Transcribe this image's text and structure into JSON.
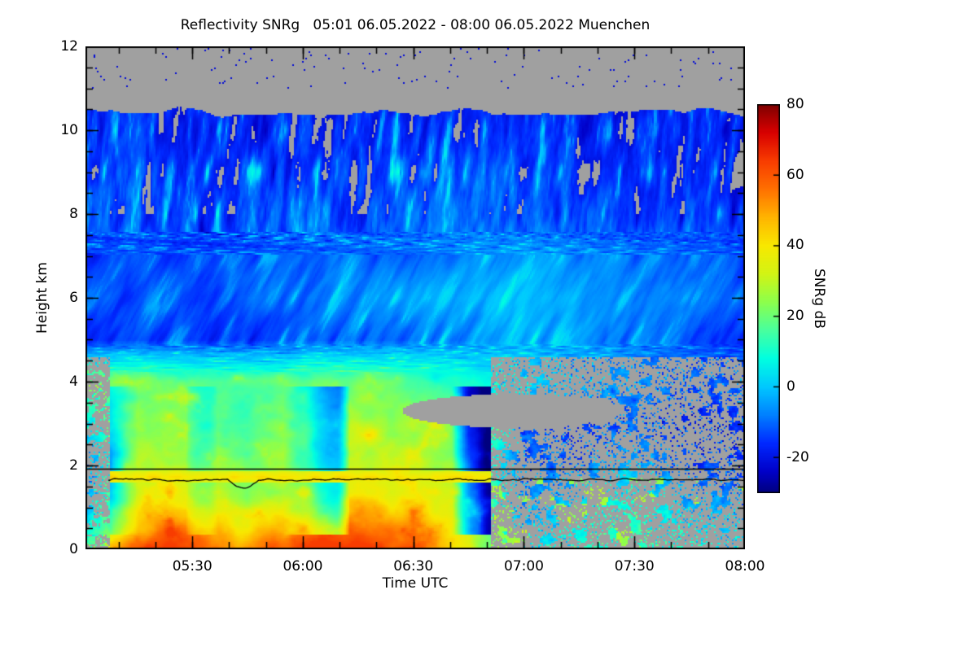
{
  "chart_data": {
    "type": "heatmap",
    "title": "Reflectivity SNRg   05:01 06.05.2022 - 08:00 06.05.2022 Muenchen",
    "xlabel": "Time UTC",
    "ylabel": "Height km",
    "x_range_hours": [
      5.0167,
      8.0
    ],
    "x_major_ticks": [
      {
        "hour": 5.5,
        "label": "05:30"
      },
      {
        "hour": 6.0,
        "label": "06:00"
      },
      {
        "hour": 6.5,
        "label": "06:30"
      },
      {
        "hour": 7.0,
        "label": "07:00"
      },
      {
        "hour": 7.5,
        "label": "07:30"
      },
      {
        "hour": 8.0,
        "label": "08:00"
      }
    ],
    "x_minor_tick_minutes": 10,
    "y_range_km": [
      0,
      12
    ],
    "y_major_ticks": [
      0,
      2,
      4,
      6,
      8,
      10,
      12
    ],
    "y_minor_tick_km": 0.5,
    "colorbar": {
      "label": "SNRg dB",
      "range_db": [
        -30,
        80
      ],
      "tick_values_db": [
        80,
        60,
        40,
        20,
        0,
        -20
      ],
      "no_data_color": "#a0a0a0",
      "stops": [
        {
          "v": -30,
          "color": "#00007f"
        },
        {
          "v": -24,
          "color": "#0000c8"
        },
        {
          "v": -16,
          "color": "#0028ff"
        },
        {
          "v": -8,
          "color": "#0080ff"
        },
        {
          "v": 0,
          "color": "#00c8ff"
        },
        {
          "v": 8,
          "color": "#00ffe0"
        },
        {
          "v": 16,
          "color": "#48ff9e"
        },
        {
          "v": 24,
          "color": "#8cff4c"
        },
        {
          "v": 32,
          "color": "#d2f414"
        },
        {
          "v": 40,
          "color": "#f8e800"
        },
        {
          "v": 48,
          "color": "#ffb400"
        },
        {
          "v": 56,
          "color": "#ff7000"
        },
        {
          "v": 64,
          "color": "#f83c00"
        },
        {
          "v": 72,
          "color": "#d80000"
        },
        {
          "v": 80,
          "color": "#7f0000"
        }
      ]
    },
    "overlay_lines": {
      "flat_line_km": 1.93,
      "melting_layer_line_km": 1.66,
      "melting_line_start_hour": 5.12
    },
    "field_params": {
      "cloud_top_km": 10.45,
      "speckle_top_km": 11.0,
      "rain_end_hour": 6.85,
      "left_edge_hour": 5.13,
      "gray_blob": [
        6.95,
        3.3,
        0.5,
        0.4
      ]
    },
    "coarse_grid": {
      "times_hours": [
        5.0,
        5.25,
        5.5,
        5.75,
        6.0,
        6.25,
        6.5,
        6.75,
        7.0,
        7.25,
        7.5,
        7.75,
        8.0
      ],
      "heights_km": [
        0,
        1,
        2,
        3,
        4,
        5,
        6,
        7,
        8,
        9,
        10,
        11,
        12
      ],
      "snr_db": [
        [
          12,
          45,
          48,
          40,
          50,
          52,
          45,
          35,
          5,
          10,
          15,
          8,
          5
        ],
        [
          -5,
          35,
          38,
          25,
          40,
          45,
          40,
          30,
          -5,
          5,
          12,
          0,
          -5
        ],
        [
          -10,
          30,
          28,
          20,
          30,
          32,
          30,
          25,
          -10,
          -8,
          0,
          -12,
          -15
        ],
        [
          5,
          25,
          22,
          15,
          28,
          30,
          28,
          15,
          null,
          -15,
          -10,
          -18,
          null
        ],
        [
          20,
          22,
          20,
          18,
          22,
          22,
          18,
          10,
          2,
          -2,
          -5,
          -8,
          -10
        ],
        [
          -14,
          -12,
          -14,
          -15,
          -12,
          -10,
          -8,
          -5,
          -2,
          -5,
          -8,
          -12,
          -14
        ],
        [
          -12,
          -10,
          -12,
          -10,
          -8,
          -6,
          -4,
          -2,
          0,
          -2,
          -6,
          -8,
          -10
        ],
        [
          -14,
          -12,
          -14,
          -12,
          -10,
          -8,
          -8,
          -6,
          -4,
          -6,
          -8,
          -10,
          -12
        ],
        [
          -12,
          -10,
          -14,
          -12,
          -10,
          -12,
          -10,
          -8,
          -10,
          -12,
          -14,
          -12,
          -14
        ],
        [
          -14,
          -12,
          -15,
          -13,
          -12,
          -14,
          -12,
          -10,
          -12,
          -14,
          -15,
          -14,
          -15
        ],
        [
          -16,
          -15,
          -17,
          -16,
          -15,
          -16,
          -15,
          -14,
          -15,
          -16,
          -17,
          -16,
          -17
        ],
        [
          null,
          null,
          null,
          null,
          null,
          null,
          null,
          null,
          null,
          null,
          null,
          null,
          null
        ],
        [
          null,
          null,
          null,
          null,
          null,
          null,
          null,
          null,
          null,
          null,
          null,
          null,
          null
        ]
      ]
    }
  }
}
